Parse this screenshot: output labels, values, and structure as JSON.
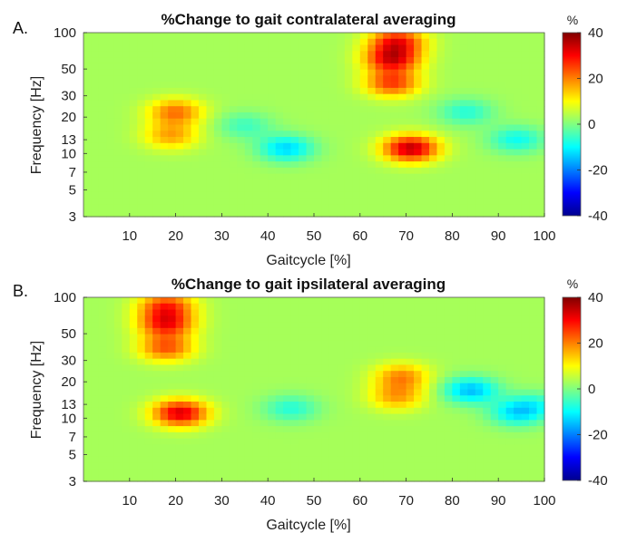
{
  "chart_data": [
    {
      "type": "heatmap",
      "panel_label": "A.",
      "title": "%Change to gait contralateral averaging",
      "xlabel": "Gaitcycle [%]",
      "ylabel": "Frequency [Hz]",
      "xlim": [
        0,
        100
      ],
      "ylim": [
        3,
        100
      ],
      "y_scale": "log",
      "x_ticks": [
        10,
        20,
        30,
        40,
        50,
        60,
        70,
        80,
        90,
        100
      ],
      "y_ticks": [
        3,
        5,
        7,
        10,
        13,
        20,
        30,
        50,
        100
      ],
      "colorbar": {
        "unit": "%",
        "min": -40,
        "max": 40,
        "ticks": [
          40,
          20,
          0,
          -20,
          -40
        ],
        "colormap": "jet"
      },
      "hotspots": [
        {
          "gait_pct": 71,
          "freq_hz": 11,
          "value": 32
        },
        {
          "gait_pct": 67,
          "freq_hz": 60,
          "value": 28
        },
        {
          "gait_pct": 67,
          "freq_hz": 38,
          "value": 22
        },
        {
          "gait_pct": 68,
          "freq_hz": 85,
          "value": 25
        },
        {
          "gait_pct": 20,
          "freq_hz": 22,
          "value": 18
        },
        {
          "gait_pct": 19,
          "freq_hz": 14,
          "value": 14
        },
        {
          "gait_pct": 44,
          "freq_hz": 11,
          "value": -16
        },
        {
          "gait_pct": 94,
          "freq_hz": 13,
          "value": -12
        },
        {
          "gait_pct": 83,
          "freq_hz": 22,
          "value": -10
        },
        {
          "gait_pct": 35,
          "freq_hz": 17,
          "value": -8
        }
      ]
    },
    {
      "type": "heatmap",
      "panel_label": "B.",
      "title": "%Change to gait ipsilateral averaging",
      "xlabel": "Gaitcycle [%]",
      "ylabel": "Frequency [Hz]",
      "xlim": [
        0,
        100
      ],
      "ylim": [
        3,
        100
      ],
      "y_scale": "log",
      "x_ticks": [
        10,
        20,
        30,
        40,
        50,
        60,
        70,
        80,
        90,
        100
      ],
      "y_ticks": [
        3,
        5,
        7,
        10,
        13,
        20,
        30,
        50,
        100
      ],
      "colorbar": {
        "unit": "%",
        "min": -40,
        "max": 40,
        "ticks": [
          40,
          20,
          0,
          -20,
          -40
        ],
        "colormap": "jet"
      },
      "hotspots": [
        {
          "gait_pct": 21,
          "freq_hz": 11,
          "value": 30
        },
        {
          "gait_pct": 18,
          "freq_hz": 60,
          "value": 25
        },
        {
          "gait_pct": 18,
          "freq_hz": 38,
          "value": 20
        },
        {
          "gait_pct": 18,
          "freq_hz": 85,
          "value": 22
        },
        {
          "gait_pct": 69,
          "freq_hz": 22,
          "value": 16
        },
        {
          "gait_pct": 68,
          "freq_hz": 15,
          "value": 14
        },
        {
          "gait_pct": 84,
          "freq_hz": 17,
          "value": -18
        },
        {
          "gait_pct": 94,
          "freq_hz": 11,
          "value": -14
        },
        {
          "gait_pct": 45,
          "freq_hz": 12,
          "value": -10
        },
        {
          "gait_pct": 98,
          "freq_hz": 13,
          "value": -8
        }
      ]
    }
  ]
}
